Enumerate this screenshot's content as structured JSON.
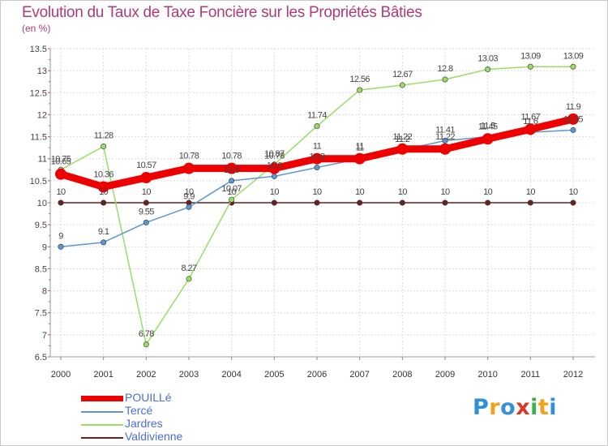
{
  "chart_data": {
    "type": "line",
    "title": "Evolution du Taux de Taxe Foncière sur les Propriétés Bâties",
    "subtitle": "(en %)",
    "xlabel": "",
    "ylabel": "",
    "x": [
      "2000",
      "2001",
      "2002",
      "2003",
      "2004",
      "2005",
      "2006",
      "2007",
      "2008",
      "2009",
      "2010",
      "2011",
      "2012"
    ],
    "ylim": [
      6.5,
      13.5
    ],
    "yticks": [
      "6.5",
      "7",
      "7.5",
      "8",
      "8.5",
      "9",
      "9.5",
      "10",
      "10.5",
      "11",
      "11.5",
      "12",
      "12.5",
      "13",
      "13.5"
    ],
    "legend_position": "bottom-left",
    "series": [
      {
        "name": "Valdivienne",
        "color": "#6b1f1f",
        "values": [
          10,
          10,
          10,
          10,
          10,
          10,
          10,
          10,
          10,
          10,
          10,
          10,
          10
        ],
        "labels": [
          "10",
          "10",
          "10",
          "10",
          "10",
          "10",
          "10",
          "10",
          "10",
          "10",
          "10",
          "10",
          "10"
        ]
      },
      {
        "name": "Jardres",
        "color": "#99dd66",
        "values": [
          10.75,
          11.28,
          6.78,
          8.27,
          10.07,
          10.87,
          11.74,
          12.56,
          12.67,
          12.8,
          13.03,
          13.09,
          13.09
        ],
        "labels": [
          "10.75",
          "11.28",
          "6.78",
          "8.27",
          "10.07",
          "10.87",
          "11.74",
          "12.56",
          "12.67",
          "12.8",
          "13.03",
          "13.09",
          "13.09"
        ]
      },
      {
        "name": "Tercé",
        "color": "#5b97d3",
        "values": [
          9,
          9.1,
          9.55,
          9.9,
          10.5,
          10.6,
          10.8,
          11,
          11.2,
          11.41,
          11.5,
          11.6,
          11.65
        ],
        "labels": [
          "9",
          "9.1",
          "9.55",
          "9.9",
          "10.5",
          "10.6",
          "10.8",
          "11",
          "11.2",
          "11.41",
          "11.5",
          "11.6",
          "11.65"
        ]
      },
      {
        "name": "POUILLé",
        "color": "#ee0000",
        "values": [
          10.65,
          10.36,
          10.57,
          10.78,
          10.78,
          10.78,
          11,
          11,
          11.22,
          11.22,
          11.45,
          11.67,
          11.9
        ],
        "labels": [
          "10.65",
          "10.36",
          "10.57",
          "10.78",
          "10.78",
          "10.78",
          "11",
          "11",
          "11.22",
          "11.22",
          "11.45",
          "11.67",
          "11.9"
        ]
      }
    ],
    "legend": [
      "POUILLé",
      "Tercé",
      "Jardres",
      "Valdivienne"
    ]
  },
  "brand": {
    "letters": [
      "P",
      "r",
      "o",
      "x",
      "i",
      "t",
      "i"
    ],
    "colors": [
      "#2f8fd8",
      "#f0a21a",
      "#3a8fd8",
      "#d83a2a",
      "#3ab04a",
      "#f0a21a",
      "#2f8fd8"
    ]
  }
}
